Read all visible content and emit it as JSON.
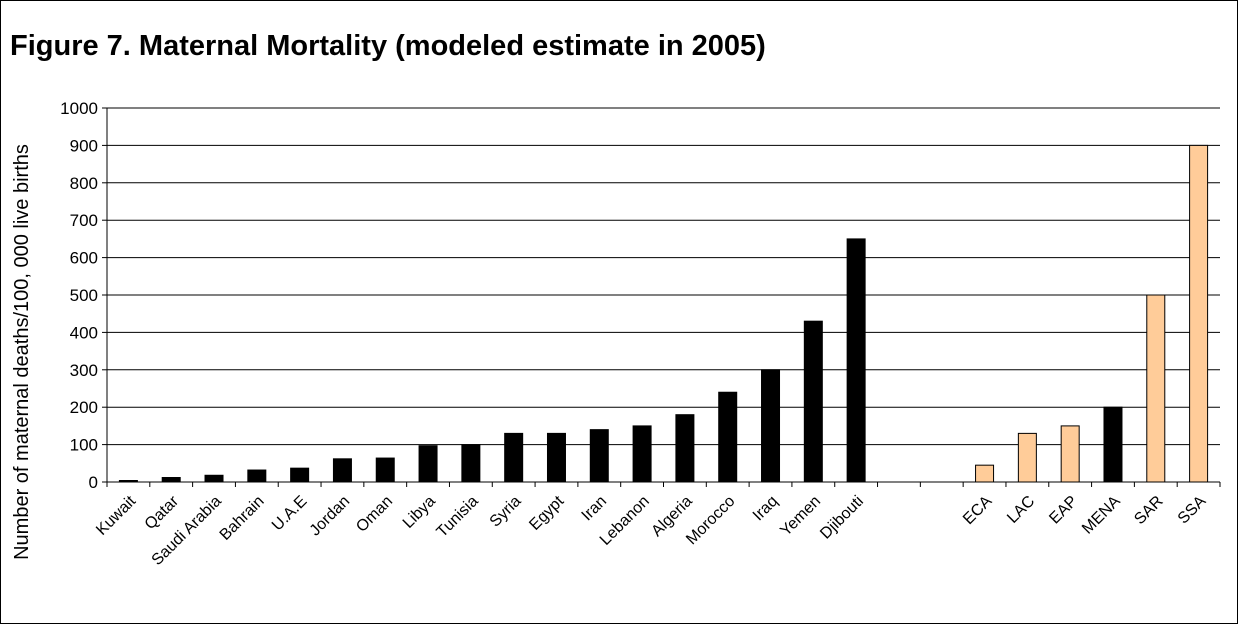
{
  "chart_data": {
    "type": "bar",
    "title": "Figure 7.  Maternal Mortality (modeled estimate in 2005)",
    "ylabel": "Number of maternal deaths/100, 000 live births",
    "xlabel": "",
    "ylim": [
      0,
      1000
    ],
    "yticks": [
      0,
      100,
      200,
      300,
      400,
      500,
      600,
      700,
      800,
      900,
      1000
    ],
    "grid": true,
    "legend": "none",
    "colors": {
      "country": "#000000",
      "region": "#FFCC99",
      "region_border": "#000000"
    },
    "categories": [
      "Kuwait",
      "Qatar",
      "Saudi Arabia",
      "Bahrain",
      "U.A.E",
      "Jordan",
      "Oman",
      "Libya",
      "Tunisia",
      "Syria",
      "Egypt",
      "Iran",
      "Lebanon",
      "Algeria",
      "Morocco",
      "Iraq",
      "Yemen",
      "Djibouti",
      "",
      "",
      "ECA",
      "LAC",
      "EAP",
      "MENA",
      "SAR",
      "SSA"
    ],
    "values": [
      4,
      12,
      18,
      32,
      37,
      62,
      64,
      97,
      100,
      130,
      130,
      140,
      150,
      180,
      240,
      300,
      430,
      650,
      null,
      null,
      45,
      130,
      150,
      200,
      500,
      900
    ],
    "bar_group": [
      "country",
      "country",
      "country",
      "country",
      "country",
      "country",
      "country",
      "country",
      "country",
      "country",
      "country",
      "country",
      "country",
      "country",
      "country",
      "country",
      "country",
      "country",
      "none",
      "none",
      "region",
      "region",
      "region",
      "country",
      "region",
      "region"
    ]
  }
}
